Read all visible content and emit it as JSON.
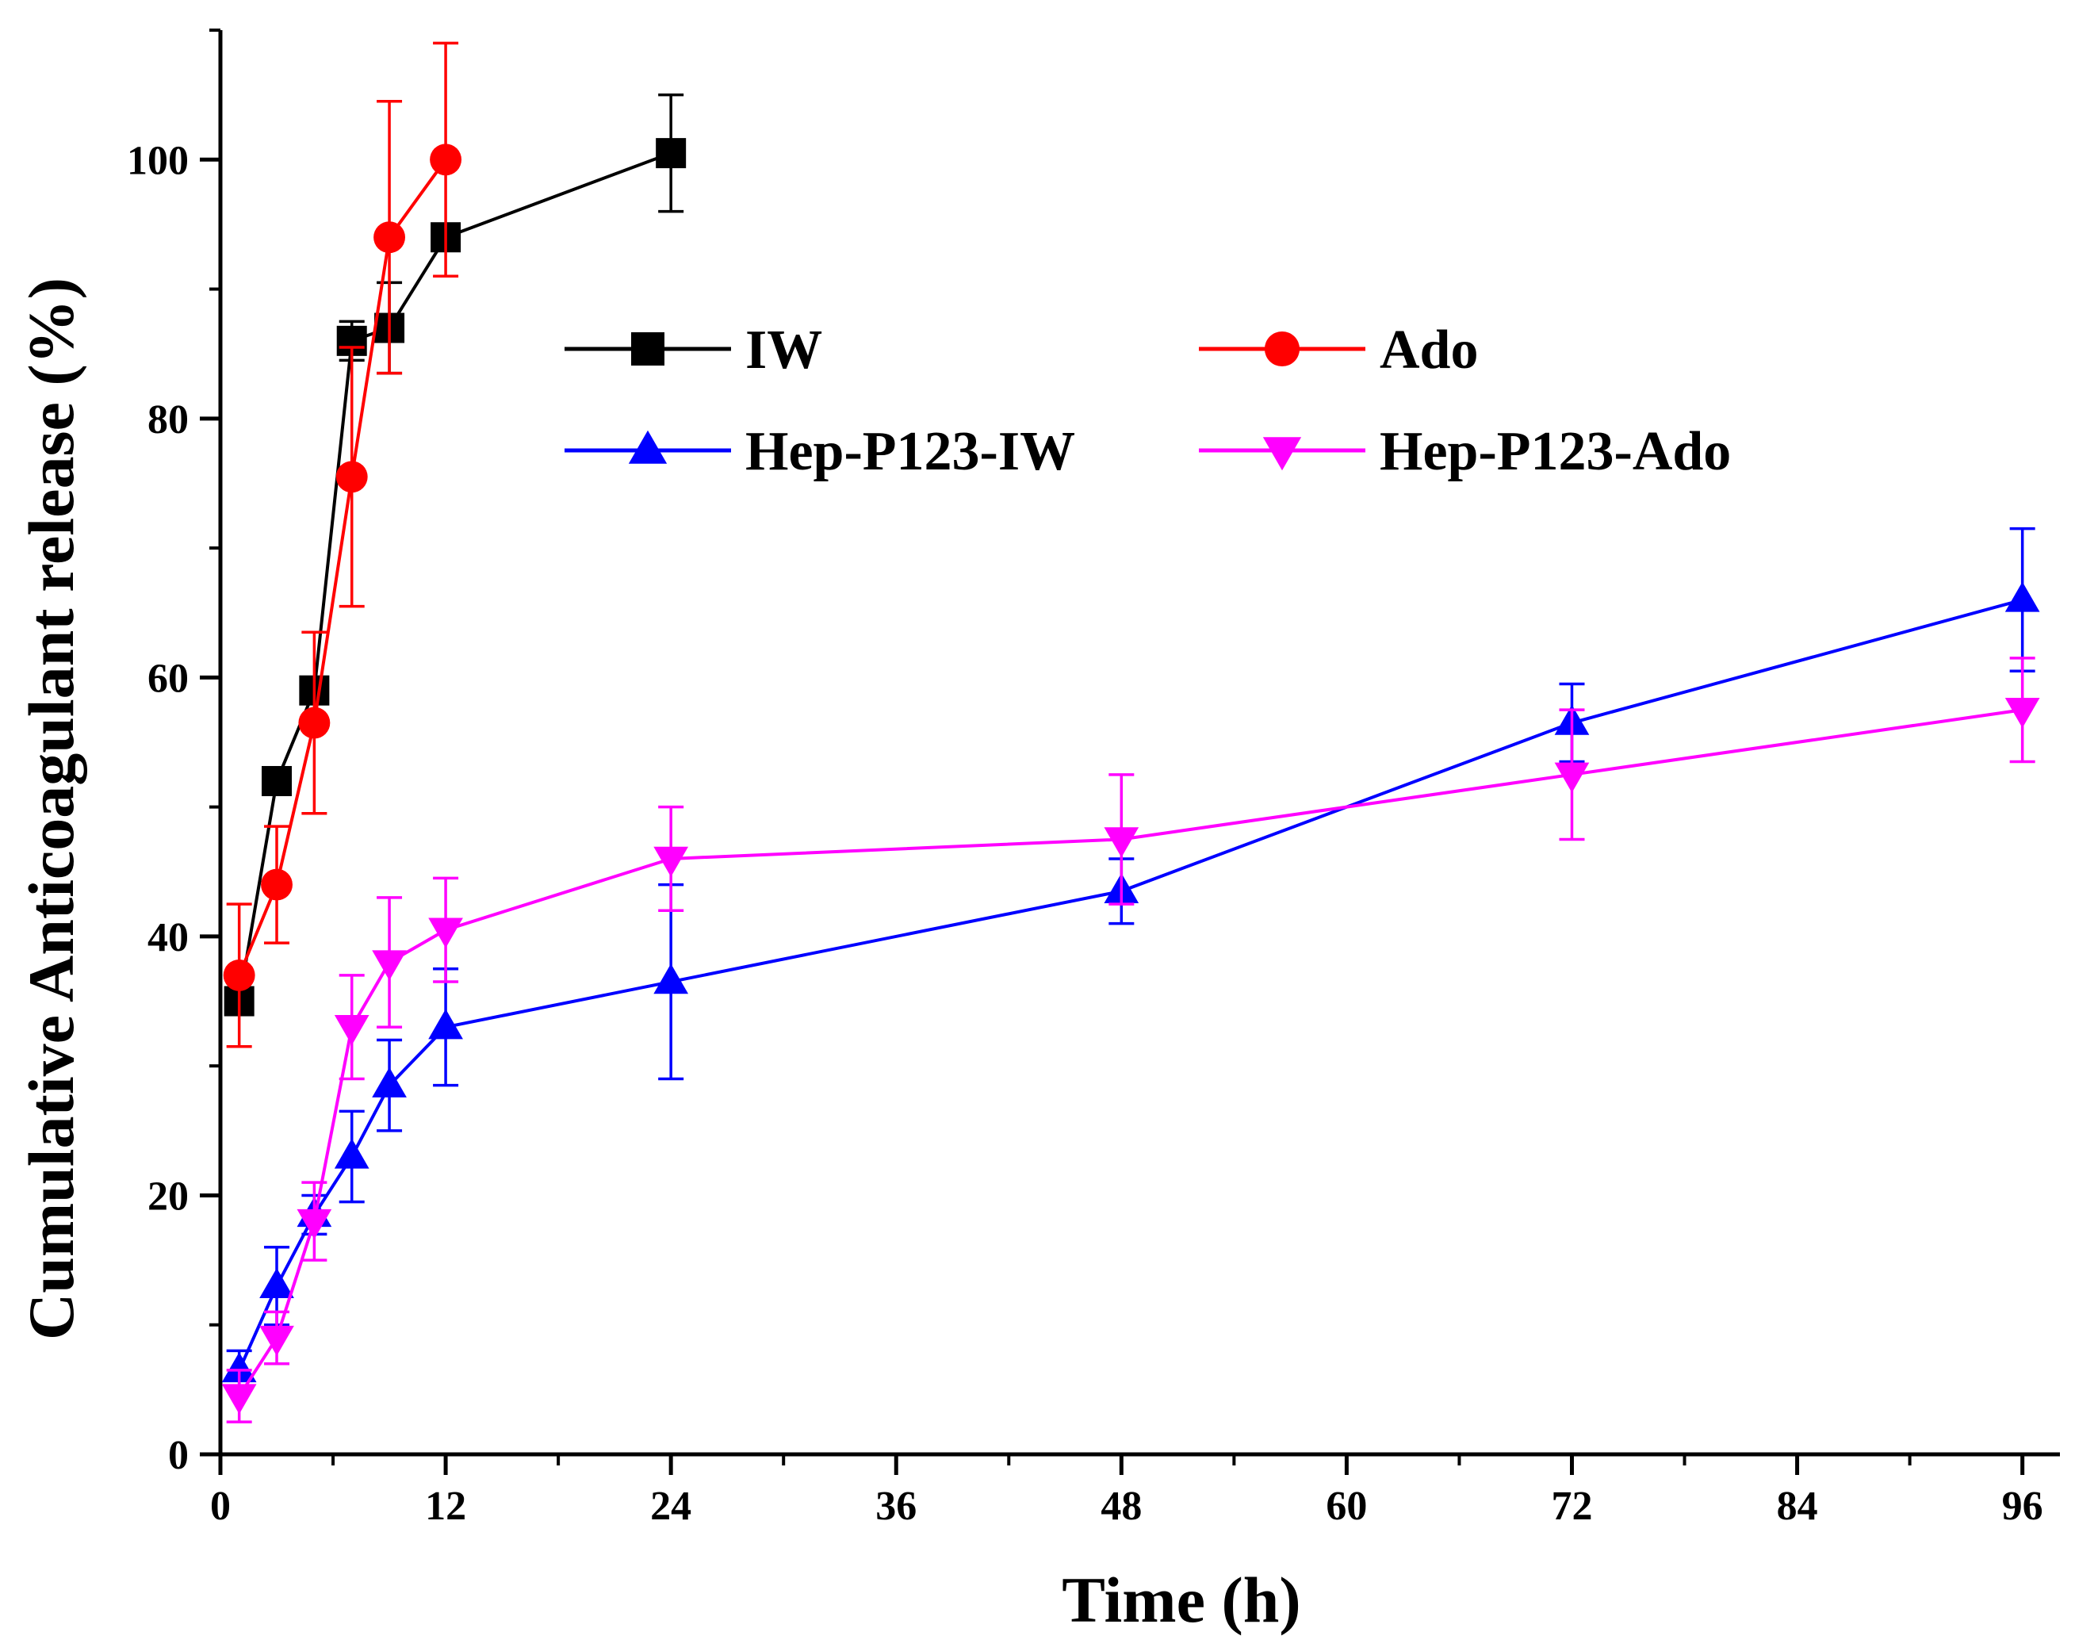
{
  "chart_data": {
    "type": "line",
    "title": "",
    "xlabel": "Time (h)",
    "ylabel": "Cumulative Anticoagulant release (%)",
    "xlim": [
      0,
      98
    ],
    "ylim": [
      0,
      110
    ],
    "xticks": [
      0,
      12,
      24,
      36,
      48,
      60,
      72,
      84,
      96
    ],
    "xtick_labels": [
      "0",
      "12",
      "24",
      "36",
      "48",
      "60",
      "72",
      "84",
      "96"
    ],
    "yticks": [
      0,
      20,
      40,
      60,
      80,
      100
    ],
    "ytick_labels": [
      "0",
      "20",
      "40",
      "60",
      "80",
      "100"
    ],
    "grid": false,
    "legend_position": "center-top, two columns",
    "series": [
      {
        "name": "IW",
        "color": "#000000",
        "marker": "square",
        "x": [
          1,
          3,
          5,
          7,
          9,
          12,
          24
        ],
        "y": [
          35,
          52,
          59,
          86,
          87,
          94,
          100.5
        ],
        "err": [
          0,
          0,
          0,
          1.5,
          3.5,
          0,
          4.5
        ]
      },
      {
        "name": "Ado",
        "color": "#ff0000",
        "marker": "circle",
        "x": [
          1,
          3,
          5,
          7,
          9,
          12
        ],
        "y": [
          37,
          44,
          56.5,
          75.5,
          94,
          100
        ],
        "err": [
          5.5,
          4.5,
          7,
          10,
          10.5,
          9
        ]
      },
      {
        "name": "Hep-P123-IW",
        "color": "#0000ff",
        "marker": "triangle-up",
        "x": [
          1,
          3,
          5,
          7,
          9,
          12,
          24,
          48,
          72,
          96
        ],
        "y": [
          6.5,
          13,
          18.5,
          23,
          28.5,
          33,
          36.5,
          43.5,
          56.5,
          66
        ],
        "err": [
          1.5,
          3,
          1.5,
          3.5,
          3.5,
          4.5,
          7.5,
          2.5,
          3,
          5.5
        ]
      },
      {
        "name": "Hep-P123-Ado",
        "color": "#ff00ff",
        "marker": "triangle-down",
        "x": [
          1,
          3,
          5,
          7,
          9,
          12,
          24,
          48,
          72,
          96
        ],
        "y": [
          4.5,
          9,
          18,
          33,
          38,
          40.5,
          46,
          47.5,
          52.5,
          57.5
        ],
        "err": [
          2,
          2,
          3,
          4,
          5,
          4,
          4,
          5,
          5,
          4
        ]
      }
    ]
  }
}
